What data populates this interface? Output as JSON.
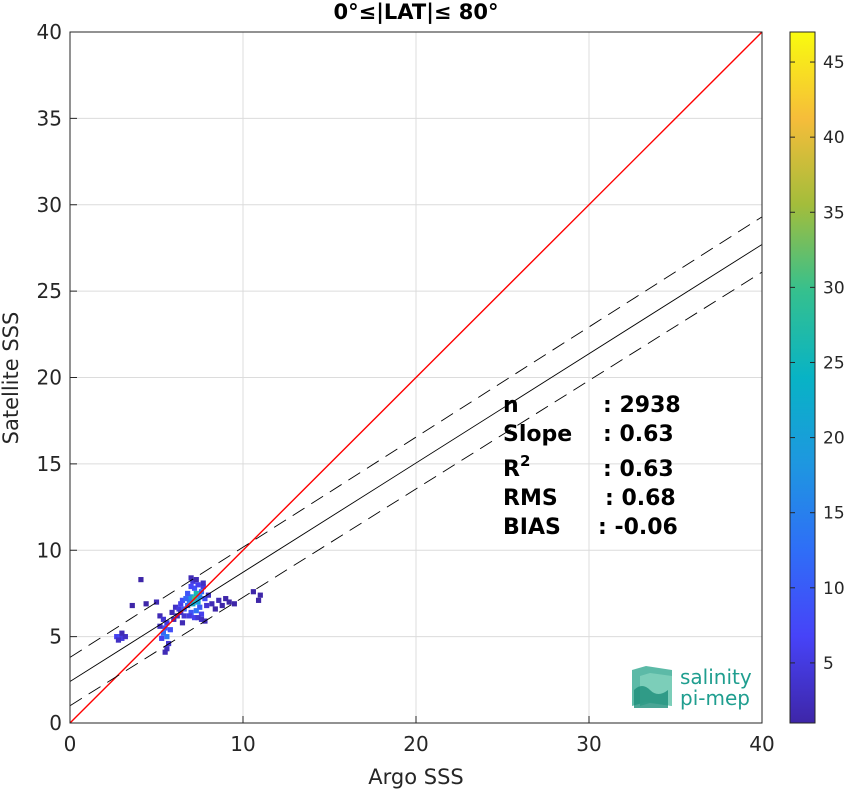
{
  "chart_data": {
    "type": "heatmap",
    "title": "0°≤|LAT|≤ 80°",
    "xlabel": "Argo SSS",
    "ylabel": "Satellite SSS",
    "xlim": [
      0,
      40
    ],
    "ylim": [
      0,
      40
    ],
    "xticks": [
      "0",
      "10",
      "20",
      "30",
      "40"
    ],
    "yticks": [
      "0",
      "5",
      "10",
      "15",
      "20",
      "25",
      "30",
      "35",
      "40"
    ],
    "grid": true,
    "colorbar": {
      "range": [
        1,
        47
      ],
      "ticks": [
        "5",
        "10",
        "15",
        "20",
        "25",
        "30",
        "35",
        "40",
        "45"
      ],
      "colormap": "parula"
    },
    "lines": [
      {
        "name": "identity",
        "color": "#ff0000",
        "style": "solid",
        "x": [
          0,
          40
        ],
        "y": [
          0,
          40
        ]
      },
      {
        "name": "fit",
        "color": "#000000",
        "style": "solid",
        "x": [
          0,
          40
        ],
        "y": [
          2.4,
          27.7
        ]
      },
      {
        "name": "fit-upper",
        "color": "#000000",
        "style": "dashed",
        "x": [
          0,
          40
        ],
        "y": [
          3.8,
          29.3
        ]
      },
      {
        "name": "fit-lower",
        "color": "#000000",
        "style": "dashed",
        "x": [
          0,
          40
        ],
        "y": [
          1.0,
          26.1
        ]
      }
    ],
    "cells": [
      [
        2.7,
        5.0,
        6
      ],
      [
        2.9,
        5.0,
        8
      ],
      [
        3.0,
        4.9,
        5
      ],
      [
        3.2,
        5.0,
        3
      ],
      [
        2.8,
        4.8,
        3
      ],
      [
        3.0,
        5.2,
        2
      ],
      [
        3.6,
        6.8,
        1
      ],
      [
        4.1,
        8.3,
        1
      ],
      [
        5.0,
        7.0,
        2
      ],
      [
        4.4,
        6.9,
        1
      ],
      [
        5.2,
        6.2,
        2
      ],
      [
        5.4,
        6.0,
        4
      ],
      [
        5.6,
        5.8,
        5
      ],
      [
        5.5,
        5.5,
        9
      ],
      [
        5.4,
        5.2,
        12
      ],
      [
        5.6,
        5.0,
        14
      ],
      [
        5.3,
        4.9,
        6
      ],
      [
        5.7,
        4.6,
        4
      ],
      [
        5.6,
        4.3,
        3
      ],
      [
        5.5,
        4.1,
        2
      ],
      [
        5.8,
        5.4,
        8
      ],
      [
        5.2,
        5.6,
        3
      ],
      [
        5.9,
        6.4,
        2
      ],
      [
        6.1,
        6.7,
        3
      ],
      [
        6.3,
        6.6,
        5
      ],
      [
        6.4,
        6.9,
        6
      ],
      [
        6.5,
        7.1,
        8
      ],
      [
        6.6,
        6.6,
        10
      ],
      [
        6.8,
        6.8,
        12
      ],
      [
        6.9,
        7.1,
        14
      ],
      [
        7.0,
        7.3,
        18
      ],
      [
        7.1,
        6.9,
        22
      ],
      [
        7.2,
        7.2,
        30
      ],
      [
        7.3,
        7.5,
        26
      ],
      [
        7.4,
        7.0,
        20
      ],
      [
        7.5,
        7.3,
        16
      ],
      [
        7.6,
        7.6,
        12
      ],
      [
        7.2,
        7.8,
        9
      ],
      [
        7.4,
        8.0,
        6
      ],
      [
        7.1,
        8.2,
        5
      ],
      [
        7.0,
        7.9,
        7
      ],
      [
        6.8,
        7.5,
        9
      ],
      [
        6.7,
        7.2,
        11
      ],
      [
        7.5,
        6.7,
        10
      ],
      [
        7.3,
        6.5,
        13
      ],
      [
        7.6,
        6.3,
        6
      ],
      [
        7.7,
        7.9,
        5
      ],
      [
        7.8,
        7.2,
        8
      ],
      [
        7.0,
        6.4,
        9
      ],
      [
        6.9,
        6.2,
        5
      ],
      [
        7.2,
        6.1,
        6
      ],
      [
        7.4,
        6.1,
        4
      ],
      [
        7.6,
        6.0,
        3
      ],
      [
        6.6,
        6.2,
        4
      ],
      [
        6.4,
        6.4,
        3
      ],
      [
        7.9,
        6.8,
        4
      ],
      [
        8.0,
        7.4,
        3
      ],
      [
        7.7,
        8.1,
        3
      ],
      [
        7.3,
        8.3,
        2
      ],
      [
        7.0,
        8.4,
        2
      ],
      [
        6.2,
        6.2,
        2
      ],
      [
        6.0,
        6.0,
        2
      ],
      [
        6.5,
        5.8,
        2
      ],
      [
        7.8,
        5.9,
        2
      ],
      [
        8.2,
        6.9,
        2
      ],
      [
        8.6,
        7.1,
        2
      ],
      [
        8.8,
        6.8,
        1
      ],
      [
        9.2,
        7.0,
        1
      ],
      [
        9.5,
        6.9,
        1
      ],
      [
        9.0,
        7.2,
        1
      ],
      [
        11.0,
        7.4,
        1
      ],
      [
        10.6,
        7.6,
        1
      ],
      [
        10.9,
        7.1,
        1
      ],
      [
        8.4,
        6.6,
        1
      ]
    ]
  },
  "stats": {
    "labels": [
      "n",
      "Slope",
      "R2",
      "RMS",
      "BIAS"
    ],
    "values": [
      ": 2938",
      ": 0.63",
      ": 0.63",
      ": 0.68",
      ": -0.06"
    ]
  },
  "logo": {
    "line1": "salinity",
    "line2": "pi-mep"
  }
}
